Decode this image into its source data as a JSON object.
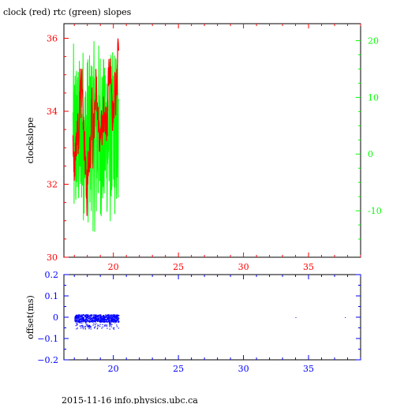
{
  "title": "clock (red) rtc (green) slopes",
  "footer": "2015-11-16 info.physics.ubc.ca",
  "colors": {
    "clock": "#ff0000",
    "rtc": "#00ff00",
    "offset": "#0000ff",
    "frame": "#000000"
  },
  "chart_data": [
    {
      "type": "line",
      "title": "clock (red) rtc (green) slopes",
      "ylabel": "clockslope",
      "xlim": [
        16.2,
        39.0
      ],
      "ylim": [
        30.0,
        36.4
      ],
      "y2lim": [
        -18.2,
        23.0
      ],
      "x_ticks": [
        "20",
        "25",
        "30",
        "35"
      ],
      "y_ticks": [
        "30",
        "32",
        "34",
        "36"
      ],
      "y2_ticks": [
        "-10",
        "0",
        "10",
        "20"
      ],
      "series": [
        {
          "name": "clock",
          "axis": "left",
          "x_range": [
            16.9,
            20.4
          ],
          "y_range": [
            30.2,
            36.2
          ]
        },
        {
          "name": "rtc",
          "axis": "right",
          "x_range": [
            16.9,
            20.4
          ],
          "y_range": [
            -17,
            21
          ]
        }
      ],
      "grid": false
    },
    {
      "type": "scatter",
      "ylabel": "offset(ms)",
      "xlim": [
        16.2,
        39.0
      ],
      "ylim": [
        -0.2,
        0.2
      ],
      "x_ticks": [
        "20",
        "25",
        "30",
        "35"
      ],
      "y_ticks": [
        "−0.2",
        "−0.1",
        "0",
        "0.1",
        "0.2"
      ],
      "series": [
        {
          "name": "offset",
          "x_range": [
            17.0,
            20.4
          ],
          "y_range": [
            -0.05,
            0.015
          ]
        },
        {
          "name": "outliers",
          "x": [
            34.0,
            37.8
          ],
          "y": [
            0.0,
            0.0
          ]
        }
      ],
      "grid": false
    }
  ]
}
